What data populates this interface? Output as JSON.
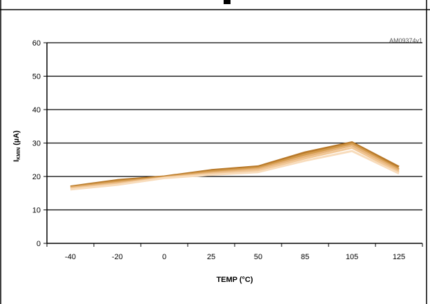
{
  "chart_data": {
    "type": "line",
    "title": "",
    "watermark": "AM09374v1",
    "xlabel": "TEMP (°C)",
    "ylabel_main": "I",
    "ylabel_sub": "KMIN",
    "ylabel_unit": " (µA)",
    "categories": [
      "-40",
      "-20",
      "0",
      "25",
      "50",
      "85",
      "105",
      "125"
    ],
    "yticks": [
      "0",
      "10",
      "20",
      "30",
      "40",
      "50",
      "60"
    ],
    "ylim": [
      0,
      60
    ],
    "grid": true,
    "series": [
      {
        "values": [
          17.0,
          18.9,
          20.0,
          21.9,
          23.0,
          27.2,
          30.2,
          22.9
        ],
        "color": "#b8792a"
      },
      {
        "values": [
          16.8,
          18.5,
          19.8,
          21.5,
          22.6,
          26.6,
          29.8,
          22.2
        ],
        "color": "#d39a4b"
      },
      {
        "values": [
          16.6,
          18.1,
          19.7,
          21.1,
          22.2,
          26.0,
          29.3,
          21.8
        ],
        "color": "#e6b379"
      },
      {
        "values": [
          16.4,
          17.8,
          19.6,
          20.8,
          21.8,
          25.4,
          28.6,
          21.3
        ],
        "color": "#f1c796"
      },
      {
        "values": [
          16.1,
          17.5,
          19.5,
          20.5,
          21.3,
          24.7,
          27.6,
          20.9
        ],
        "color": "#f8dcbc"
      }
    ]
  }
}
